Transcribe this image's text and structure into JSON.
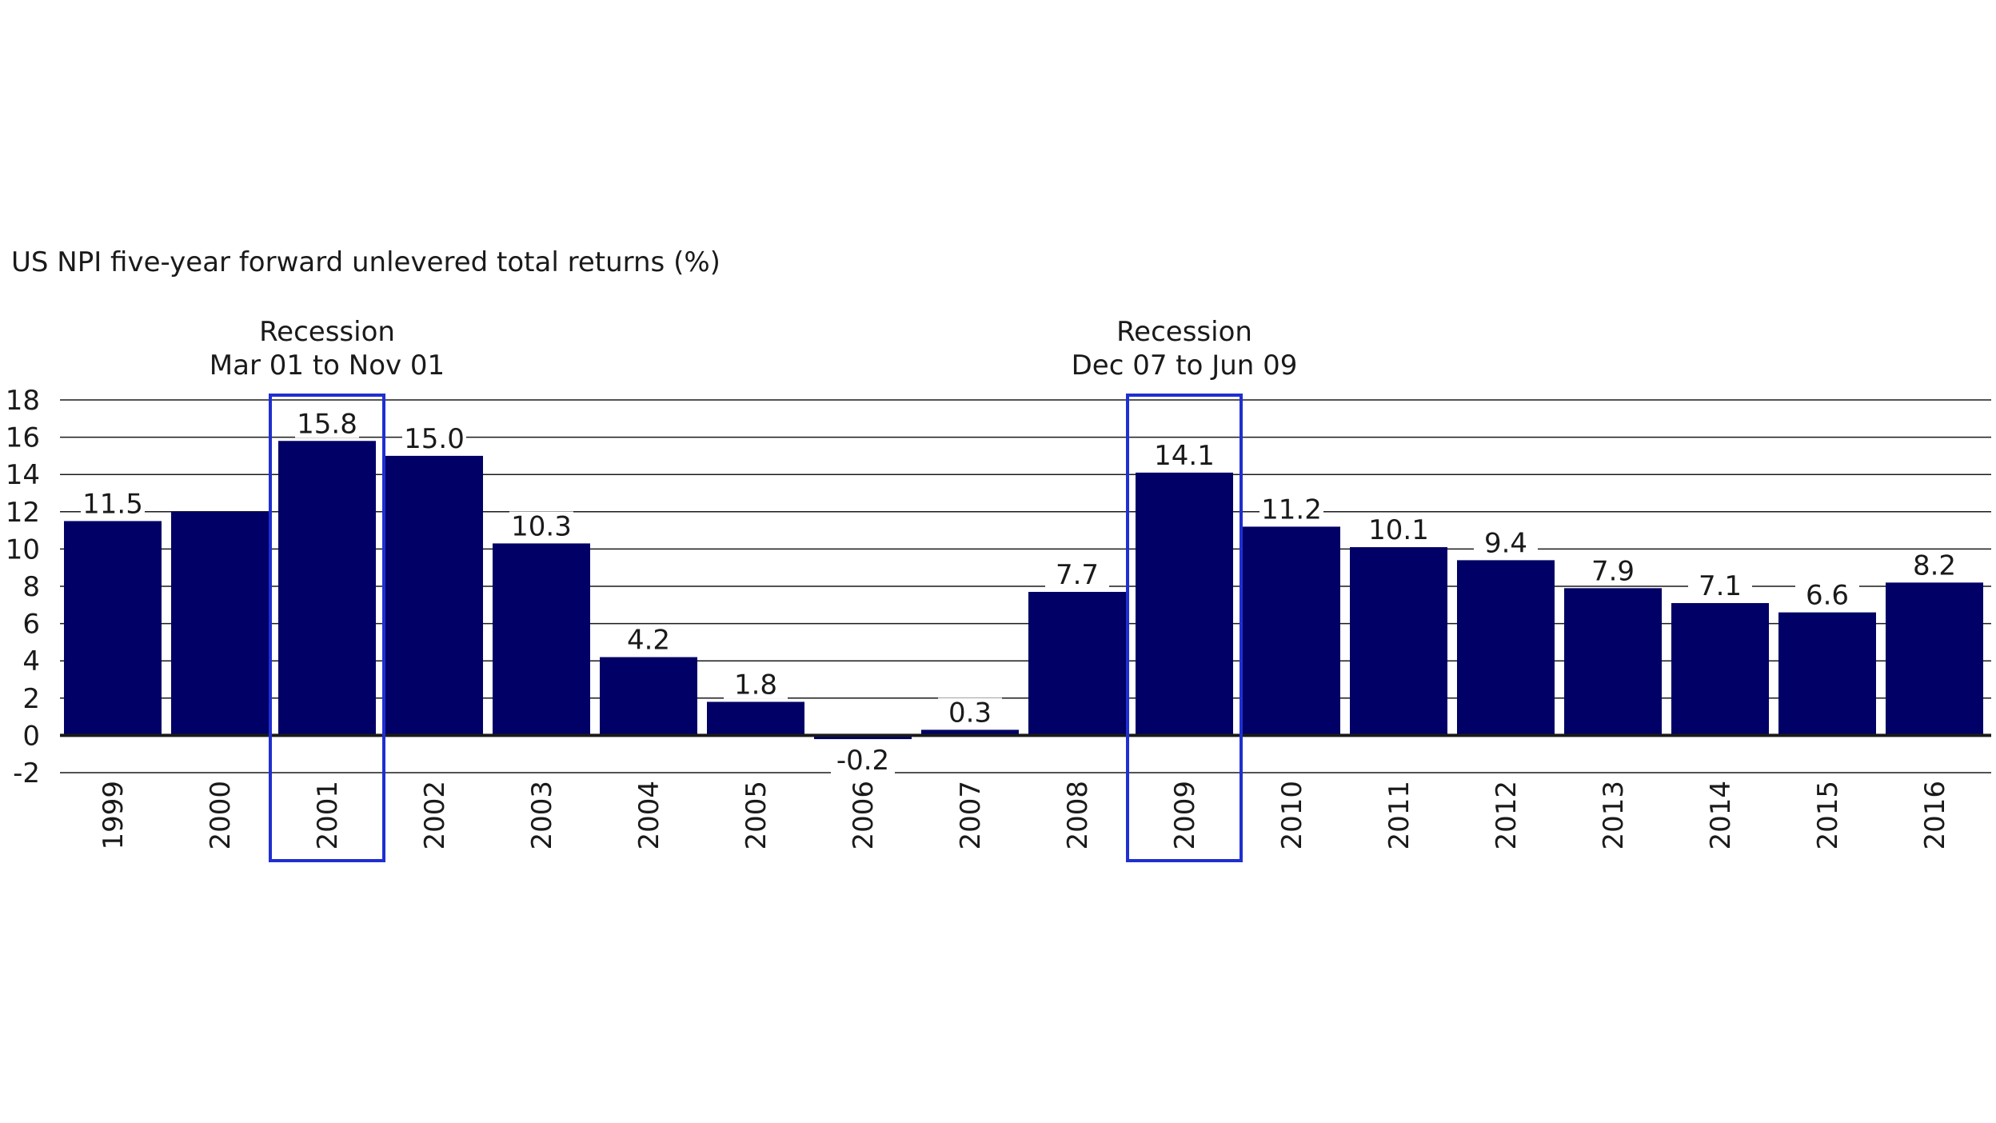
{
  "chart_data": {
    "type": "bar",
    "title": "US NPI five-year forward unlevered total returns (%)",
    "categories": [
      "1999",
      "2000",
      "2001",
      "2002",
      "2003",
      "2004",
      "2005",
      "2006",
      "2007",
      "2008",
      "2009",
      "2010",
      "2011",
      "2012",
      "2013",
      "2014",
      "2015",
      "2016"
    ],
    "values": [
      11.5,
      12.0,
      15.8,
      15.0,
      10.3,
      4.2,
      1.8,
      -0.2,
      0.3,
      7.7,
      14.1,
      11.2,
      10.1,
      9.4,
      7.9,
      7.1,
      6.6,
      8.2
    ],
    "data_labels": [
      "11.5",
      "",
      "15.8",
      "15.0",
      "10.3",
      "4.2",
      "1.8",
      "-0.2",
      "0.3",
      "7.7",
      "14.1",
      "11.2",
      "10.1",
      "9.4",
      "7.9",
      "7.1",
      "6.6",
      "8.2"
    ],
    "ylim": [
      -2,
      18
    ],
    "yticks": [
      18,
      16,
      14,
      12,
      10,
      8,
      6,
      4,
      2,
      0,
      -2
    ],
    "grid": true,
    "bar_color": "#000066",
    "highlight_color": "#1f2fd1",
    "annotations": [
      {
        "category": "2001",
        "lines": [
          "Recession",
          "Mar 01 to Nov 01"
        ]
      },
      {
        "category": "2009",
        "lines": [
          "Recession",
          "Dec 07 to Jun 09"
        ]
      }
    ]
  }
}
